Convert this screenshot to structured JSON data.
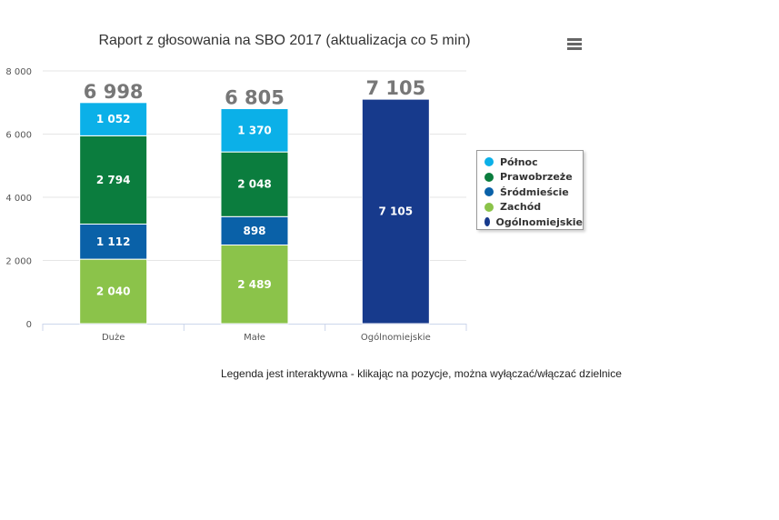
{
  "chart_data": {
    "type": "bar",
    "stacked": true,
    "title": "Raport z głosowania na SBO 2017 (aktualizacja co 5 min)",
    "categories": [
      "Duże",
      "Małe",
      "Ogólnomiejskie"
    ],
    "ylim": [
      0,
      8000
    ],
    "yticks": [
      "0",
      "2 000",
      "4 000",
      "6 000",
      "8 000"
    ],
    "ytick_values": [
      0,
      2000,
      4000,
      6000,
      8000
    ],
    "grid": true,
    "legend": "right",
    "series": [
      {
        "name": "Zachód",
        "color": "#8bc34a",
        "values": [
          2040,
          2489,
          null
        ],
        "labels": [
          "2 040",
          "2 489",
          ""
        ]
      },
      {
        "name": "Śródmieście",
        "color": "#0a61a8",
        "values": [
          1112,
          898,
          null
        ],
        "labels": [
          "1 112",
          "898",
          ""
        ]
      },
      {
        "name": "Prawobrzeże",
        "color": "#0b7d3e",
        "values": [
          2794,
          2048,
          null
        ],
        "labels": [
          "2 794",
          "2 048",
          ""
        ]
      },
      {
        "name": "Północ",
        "color": "#0bb0e8",
        "values": [
          1052,
          1370,
          null
        ],
        "labels": [
          "1 052",
          "1 370",
          ""
        ]
      },
      {
        "name": "Ogólnomiejskie",
        "color": "#173a8c",
        "values": [
          null,
          null,
          7105
        ],
        "labels": [
          "",
          "",
          "7 105"
        ]
      }
    ],
    "totals": [
      6998,
      6805,
      7105
    ],
    "total_labels": [
      "6 998",
      "6 805",
      "7 105"
    ]
  },
  "legend_items": [
    {
      "name": "Północ",
      "color": "#0bb0e8"
    },
    {
      "name": "Prawobrzeże",
      "color": "#0b7d3e"
    },
    {
      "name": "Śródmieście",
      "color": "#0a61a8"
    },
    {
      "name": "Zachód",
      "color": "#8bc34a"
    },
    {
      "name": "Ogólnomiejskie",
      "color": "#173a8c"
    }
  ],
  "note": "Legenda jest interaktywna - klikając na pozycje, można wyłączać/włączać dzielnice",
  "menu_icon": "hamburger-icon"
}
